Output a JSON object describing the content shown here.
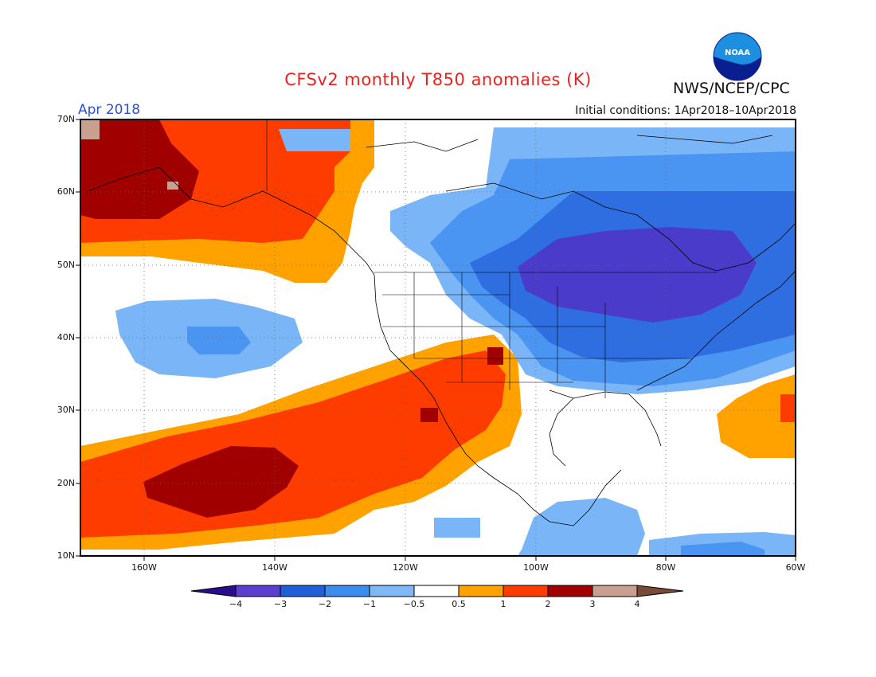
{
  "title": "CFSv2 monthly T850 anomalies (K)",
  "agency": "NWS/NCEP/CPC",
  "logo_text": "NOAA",
  "month": "Apr 2018",
  "initial_conditions": "Initial conditions: 1Apr2018–10Apr2018",
  "lat_labels": [
    "70N",
    "60N",
    "50N",
    "40N",
    "30N",
    "20N",
    "10N"
  ],
  "lon_labels": [
    "160W",
    "140W",
    "120W",
    "100W",
    "80W",
    "60W"
  ],
  "colorbar": {
    "labels": [
      "−4",
      "−3",
      "−2",
      "−1",
      "−0.5",
      "0.5",
      "1",
      "2",
      "3",
      "4"
    ],
    "colors": [
      "#2a0d8f",
      "#5a3fd0",
      "#1f5fd8",
      "#3c8cf0",
      "#7fb8f5",
      "#ffffff",
      "#ffa200",
      "#ff3c00",
      "#a00000",
      "#c9a090",
      "#7a4a38"
    ]
  },
  "colors": {
    "strong_cold": "#4a3bcb",
    "cold": "#2f6ee0",
    "moderate_cold": "#4b95f2",
    "weak_cold": "#7ab6f7",
    "weak_warm": "#ffa200",
    "warm": "#ff3c00",
    "hot": "#a00000",
    "very_hot": "#c9a090"
  }
}
